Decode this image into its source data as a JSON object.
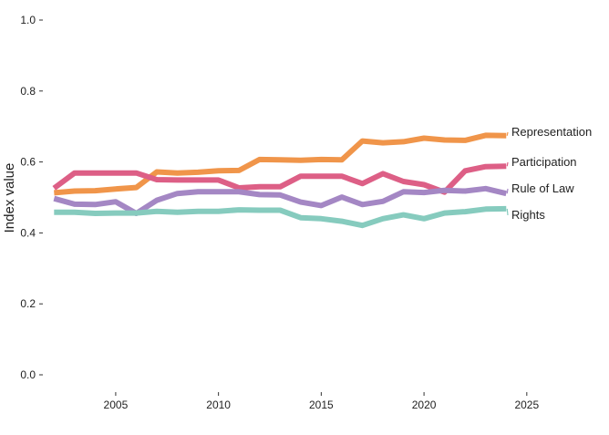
{
  "chart_data": {
    "type": "line",
    "title": "",
    "xlabel": "",
    "ylabel": "Index value",
    "xlim": [
      2001.5,
      2029
    ],
    "ylim": [
      0,
      1.0
    ],
    "x_ticks": [
      2005,
      2010,
      2015,
      2020,
      2025
    ],
    "y_ticks": [
      0.0,
      0.2,
      0.4,
      0.6,
      0.8,
      1.0
    ],
    "y_tick_labels": [
      "0.0",
      "0.2",
      "0.4",
      "0.6",
      "0.8",
      "1.0"
    ],
    "grid": false,
    "legend": "direct labels at right end of lines",
    "x": [
      2002,
      2003,
      2004,
      2005,
      2006,
      2007,
      2008,
      2009,
      2010,
      2011,
      2012,
      2013,
      2014,
      2015,
      2016,
      2017,
      2018,
      2019,
      2020,
      2021,
      2022,
      2023,
      2024
    ],
    "series": [
      {
        "name": "Representation",
        "color": "#F0954A",
        "values": [
          0.513,
          0.518,
          0.519,
          0.524,
          0.528,
          0.572,
          0.569,
          0.571,
          0.575,
          0.576,
          0.607,
          0.606,
          0.605,
          0.607,
          0.606,
          0.659,
          0.654,
          0.657,
          0.667,
          0.662,
          0.661,
          0.675,
          0.674
        ]
      },
      {
        "name": "Participation",
        "color": "#DD5F86",
        "values": [
          0.526,
          0.569,
          0.569,
          0.569,
          0.569,
          0.55,
          0.549,
          0.549,
          0.549,
          0.527,
          0.53,
          0.53,
          0.56,
          0.56,
          0.56,
          0.539,
          0.567,
          0.545,
          0.536,
          0.515,
          0.575,
          0.587,
          0.588
        ]
      },
      {
        "name": "Rule of Law",
        "color": "#A487C4",
        "values": [
          0.497,
          0.481,
          0.48,
          0.488,
          0.455,
          0.492,
          0.511,
          0.516,
          0.516,
          0.516,
          0.508,
          0.507,
          0.487,
          0.477,
          0.501,
          0.48,
          0.489,
          0.516,
          0.514,
          0.52,
          0.518,
          0.525,
          0.511
        ]
      },
      {
        "name": "Rights",
        "color": "#86CBBE",
        "values": [
          0.458,
          0.458,
          0.455,
          0.456,
          0.456,
          0.461,
          0.458,
          0.461,
          0.461,
          0.465,
          0.464,
          0.464,
          0.443,
          0.44,
          0.433,
          0.421,
          0.44,
          0.451,
          0.44,
          0.456,
          0.46,
          0.467,
          0.468
        ]
      }
    ]
  }
}
